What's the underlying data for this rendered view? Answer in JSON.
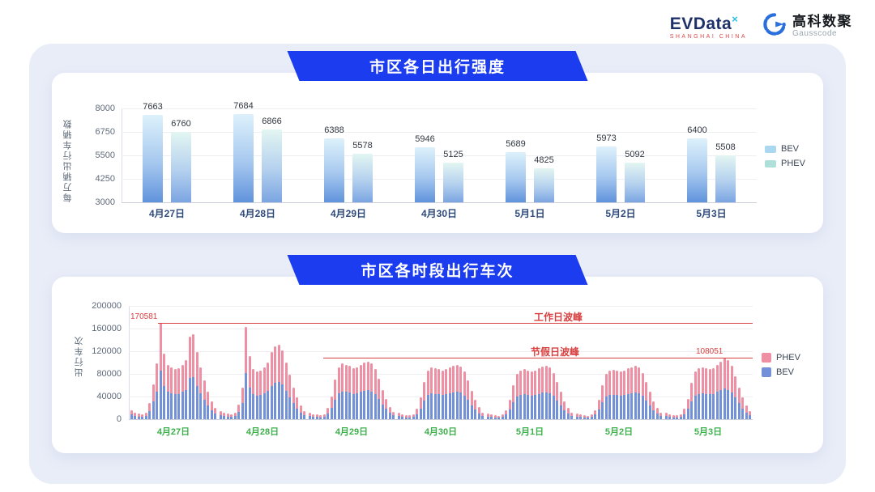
{
  "header": {
    "evdata": {
      "text": "EVData",
      "sup": "×",
      "tagline": "SHANGHAI CHINA"
    },
    "gausscode": {
      "name": "高科数聚",
      "sub": "Gausscode"
    }
  },
  "panels": [
    {
      "title": "市区各日出行强度"
    },
    {
      "title": "市区各时段出行车次"
    }
  ],
  "colors": {
    "ribbon_blue": "#1c3cf0",
    "stage_bg": "#e9edf8",
    "bev_bar_top": "#ddf1fb",
    "bev_bar_bottom": "#6093dc",
    "phev_bar_top": "#e3f6f2",
    "phev_bar_bottom": "#7ba5e2",
    "legend_bev": "#a9d8f0",
    "legend_phev": "#afdfd9",
    "hour_bev": "#7291d8",
    "hour_phev": "#ee8fa3",
    "annotation_red": "#d84040",
    "day_label_green": "#3cb04b",
    "x_label_navy": "#2e4a7a"
  },
  "chart_data": [
    {
      "type": "bar",
      "title": "市区各日出行强度",
      "ylabel": "每万辆出行车辆数",
      "categories": [
        "4月27日",
        "4月28日",
        "4月29日",
        "4月30日",
        "5月1日",
        "5月2日",
        "5月3日"
      ],
      "series": [
        {
          "name": "BEV",
          "values": [
            7663,
            7684,
            6388,
            5946,
            5689,
            5973,
            6400
          ]
        },
        {
          "name": "PHEV",
          "values": [
            6760,
            6866,
            5578,
            5125,
            4825,
            5092,
            5508
          ]
        }
      ],
      "yticks": [
        3000,
        4250,
        5500,
        6750,
        8000
      ],
      "ylim": [
        3000,
        8000
      ],
      "grid": true,
      "legend_position": "right"
    },
    {
      "type": "bar",
      "subtype": "stacked",
      "title": "市区各时段出行车次",
      "ylabel": "出行车次",
      "categories": [
        "4月27日",
        "4月28日",
        "4月29日",
        "4月30日",
        "5月1日",
        "5月2日",
        "5月3日"
      ],
      "hours_per_day": 24,
      "yticks": [
        0,
        40000,
        80000,
        120000,
        160000,
        200000
      ],
      "ylim": [
        0,
        200000
      ],
      "grid": true,
      "legend_order": [
        "PHEV",
        "BEV"
      ],
      "series": [
        {
          "name": "BEV",
          "per_day_values": [
            [
              8000,
              6000,
              5000,
              4500,
              6000,
              14000,
              31000,
              49000,
              85291,
              58000,
              48000,
              46000,
              44000,
              45000,
              48000,
              52000,
              73000,
              75000,
              59000,
              46000,
              34000,
              24000,
              16000,
              10000
            ],
            [
              7500,
              6000,
              5000,
              4500,
              5500,
              13000,
              28000,
              81500,
              56000,
              44000,
              42000,
              43000,
              46000,
              50000,
              59000,
              64000,
              66000,
              61000,
              50000,
              39000,
              28000,
              19000,
              12000,
              7500
            ],
            [
              6000,
              4500,
              4000,
              3500,
              4500,
              10000,
              20000,
              35000,
              46000,
              49000,
              48000,
              47000,
              45000,
              46000,
              48000,
              50000,
              51000,
              49000,
              44000,
              36000,
              26000,
              18000,
              11000,
              6500
            ],
            [
              5500,
              4500,
              3500,
              3500,
              4500,
              9000,
              19000,
              33000,
              43000,
              46000,
              45000,
              44000,
              43000,
              44000,
              46000,
              47500,
              48000,
              46500,
              42000,
              34000,
              25000,
              17000,
              10500,
              6000
            ],
            [
              5000,
              4000,
              3500,
              3000,
              4000,
              8000,
              17000,
              30000,
              40000,
              43000,
              44000,
              43000,
              42000,
              43000,
              45000,
              46500,
              47500,
              46000,
              41000,
              33000,
              24000,
              16000,
              10000,
              6000
            ],
            [
              5000,
              4000,
              3500,
              3000,
              4000,
              8000,
              17000,
              30000,
              40000,
              43000,
              43500,
              43000,
              42000,
              43000,
              45000,
              46000,
              47000,
              45500,
              41000,
              33000,
              24000,
              16000,
              10000,
              6000
            ],
            [
              5500,
              4500,
              3500,
              3500,
              4500,
              9000,
              18000,
              32000,
              42000,
              45000,
              46000,
              45000,
              44000,
              45000,
              48000,
              51000,
              54026,
              52000,
              47000,
              38000,
              28000,
              19000,
              12000,
              7000
            ]
          ]
        },
        {
          "name": "PHEV",
          "per_day_values": [
            [
              8000,
              6000,
              5000,
              4500,
              6000,
              14000,
              31000,
              49000,
              85290,
              58000,
              48000,
              46000,
              44000,
              45000,
              48000,
              52000,
              73000,
              75000,
              59000,
              46000,
              34000,
              24000,
              16000,
              10000
            ],
            [
              7500,
              6000,
              5000,
              4500,
              5500,
              13000,
              28000,
              81500,
              56000,
              44000,
              42000,
              43000,
              46000,
              50000,
              59000,
              64000,
              66000,
              61000,
              50000,
              39000,
              28000,
              19000,
              12000,
              7500
            ],
            [
              6000,
              4500,
              4000,
              3500,
              4500,
              10000,
              20000,
              35000,
              46000,
              49000,
              48000,
              47000,
              45000,
              46000,
              48000,
              50000,
              51000,
              49000,
              44000,
              36000,
              26000,
              18000,
              11000,
              6500
            ],
            [
              5500,
              4500,
              3500,
              3500,
              4500,
              9000,
              19000,
              33000,
              43000,
              46000,
              45000,
              44000,
              43000,
              44000,
              46000,
              47500,
              48000,
              46500,
              42000,
              34000,
              25000,
              17000,
              10500,
              6000
            ],
            [
              5000,
              4000,
              3500,
              3000,
              4000,
              8000,
              17000,
              30000,
              40000,
              43000,
              44000,
              43000,
              42000,
              43000,
              45000,
              46500,
              47500,
              46000,
              41000,
              33000,
              24000,
              16000,
              10000,
              6000
            ],
            [
              5000,
              4000,
              3500,
              3000,
              4000,
              8000,
              17000,
              30000,
              40000,
              43000,
              43500,
              43000,
              42000,
              43000,
              45000,
              46000,
              47000,
              45500,
              41000,
              33000,
              24000,
              16000,
              10000,
              6000
            ],
            [
              5500,
              4500,
              3500,
              3500,
              4500,
              9000,
              18000,
              32000,
              42000,
              45000,
              46000,
              45000,
              44000,
              45000,
              48000,
              51000,
              54025,
              52000,
              47000,
              38000,
              28000,
              19000,
              12000,
              7000
            ]
          ]
        }
      ],
      "annotations": [
        {
          "label": "工作日波峰",
          "value": 170581
        },
        {
          "label": "节假日波峰",
          "value": 108051
        }
      ]
    }
  ]
}
